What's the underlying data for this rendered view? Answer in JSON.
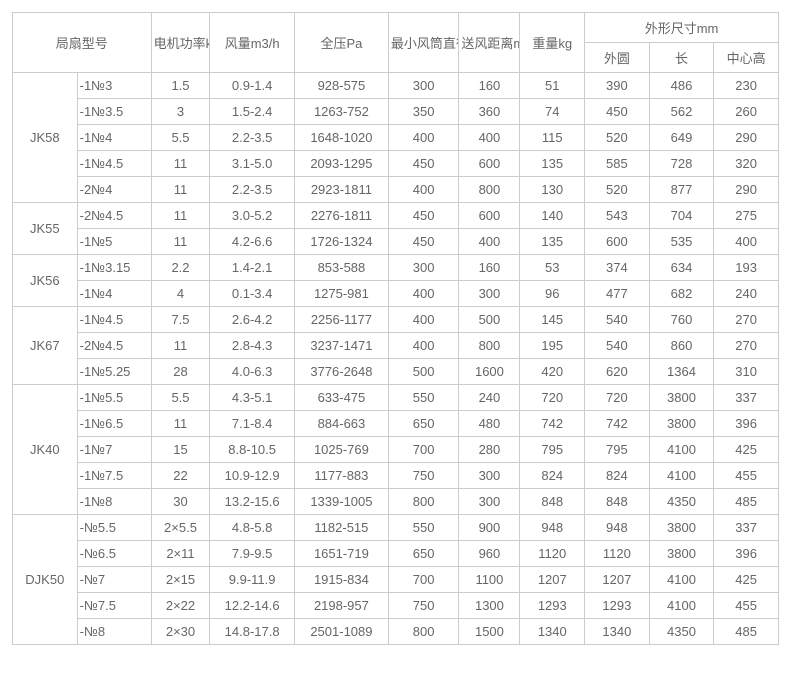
{
  "headers": {
    "model": "局扇型号",
    "power": "电机功率kW",
    "airflow": "风量m3/h",
    "pressure": "全压Pa",
    "diameter": "最小风筒直径mm",
    "distance": "送风距离m",
    "weight": "重量kg",
    "dims": "外形尺寸mm",
    "dim_outer": "外圆",
    "dim_length": "长",
    "dim_center": "中心高"
  },
  "groups": [
    {
      "name": "JK58",
      "rows": [
        {
          "sub": "-1№3",
          "power": "1.5",
          "airflow": "0.9-1.4",
          "pressure": "928-575",
          "diameter": "300",
          "distance": "160",
          "weight": "51",
          "d1": "390",
          "d2": "486",
          "d3": "230"
        },
        {
          "sub": "-1№3.5",
          "power": "3",
          "airflow": "1.5-2.4",
          "pressure": "1263-752",
          "diameter": "350",
          "distance": "360",
          "weight": "74",
          "d1": "450",
          "d2": "562",
          "d3": "260"
        },
        {
          "sub": "-1№4",
          "power": "5.5",
          "airflow": "2.2-3.5",
          "pressure": "1648-1020",
          "diameter": "400",
          "distance": "400",
          "weight": "115",
          "d1": "520",
          "d2": "649",
          "d3": "290"
        },
        {
          "sub": "-1№4.5",
          "power": "11",
          "airflow": "3.1-5.0",
          "pressure": "2093-1295",
          "diameter": "450",
          "distance": "600",
          "weight": "135",
          "d1": "585",
          "d2": "728",
          "d3": "320"
        },
        {
          "sub": "-2№4",
          "power": "11",
          "airflow": "2.2-3.5",
          "pressure": "2923-1811",
          "diameter": "400",
          "distance": "800",
          "weight": "130",
          "d1": "520",
          "d2": "877",
          "d3": "290"
        }
      ]
    },
    {
      "name": "JK55",
      "rows": [
        {
          "sub": "-2№4.5",
          "power": "11",
          "airflow": "3.0-5.2",
          "pressure": "2276-1811",
          "diameter": "450",
          "distance": "600",
          "weight": "140",
          "d1": "543",
          "d2": "704",
          "d3": "275"
        },
        {
          "sub": "-1№5",
          "power": "11",
          "airflow": "4.2-6.6",
          "pressure": "1726-1324",
          "diameter": "450",
          "distance": "400",
          "weight": "135",
          "d1": "600",
          "d2": "535",
          "d3": "400"
        }
      ]
    },
    {
      "name": "JK56",
      "rows": [
        {
          "sub": "-1№3.15",
          "power": "2.2",
          "airflow": "1.4-2.1",
          "pressure": "853-588",
          "diameter": "300",
          "distance": "160",
          "weight": "53",
          "d1": "374",
          "d2": "634",
          "d3": "193"
        },
        {
          "sub": "-1№4",
          "power": "4",
          "airflow": "0.1-3.4",
          "pressure": "1275-981",
          "diameter": "400",
          "distance": "300",
          "weight": "96",
          "d1": "477",
          "d2": "682",
          "d3": "240"
        }
      ]
    },
    {
      "name": "JK67",
      "rows": [
        {
          "sub": "-1№4.5",
          "power": "7.5",
          "airflow": "2.6-4.2",
          "pressure": "2256-1177",
          "diameter": "400",
          "distance": "500",
          "weight": "145",
          "d1": "540",
          "d2": "760",
          "d3": "270"
        },
        {
          "sub": "-2№4.5",
          "power": "11",
          "airflow": "2.8-4.3",
          "pressure": "3237-1471",
          "diameter": "400",
          "distance": "800",
          "weight": "195",
          "d1": "540",
          "d2": "860",
          "d3": "270"
        },
        {
          "sub": "-1№5.25",
          "power": "28",
          "airflow": "4.0-6.3",
          "pressure": "3776-2648",
          "diameter": "500",
          "distance": "1600",
          "weight": "420",
          "d1": "620",
          "d2": "1364",
          "d3": "310"
        }
      ]
    },
    {
      "name": "JK40",
      "rows": [
        {
          "sub": "-1№5.5",
          "power": "5.5",
          "airflow": "4.3-5.1",
          "pressure": "633-475",
          "diameter": "550",
          "distance": "240",
          "weight": "720",
          "d1": "720",
          "d2": "3800",
          "d3": "337"
        },
        {
          "sub": "-1№6.5",
          "power": "11",
          "airflow": "7.1-8.4",
          "pressure": "884-663",
          "diameter": "650",
          "distance": "480",
          "weight": "742",
          "d1": "742",
          "d2": "3800",
          "d3": "396"
        },
        {
          "sub": "-1№7",
          "power": "15",
          "airflow": "8.8-10.5",
          "pressure": "1025-769",
          "diameter": "700",
          "distance": "280",
          "weight": "795",
          "d1": "795",
          "d2": "4100",
          "d3": "425"
        },
        {
          "sub": "-1№7.5",
          "power": "22",
          "airflow": "10.9-12.9",
          "pressure": "1177-883",
          "diameter": "750",
          "distance": "300",
          "weight": "824",
          "d1": "824",
          "d2": "4100",
          "d3": "455"
        },
        {
          "sub": "-1№8",
          "power": "30",
          "airflow": "13.2-15.6",
          "pressure": "1339-1005",
          "diameter": "800",
          "distance": "300",
          "weight": "848",
          "d1": "848",
          "d2": "4350",
          "d3": "485"
        }
      ]
    },
    {
      "name": "DJK50",
      "rows": [
        {
          "sub": "-№5.5",
          "power": "2×5.5",
          "airflow": "4.8-5.8",
          "pressure": "1182-515",
          "diameter": "550",
          "distance": "900",
          "weight": "948",
          "d1": "948",
          "d2": "3800",
          "d3": "337"
        },
        {
          "sub": "-№6.5",
          "power": "2×11",
          "airflow": "7.9-9.5",
          "pressure": "1651-719",
          "diameter": "650",
          "distance": "960",
          "weight": "1120",
          "d1": "1120",
          "d2": "3800",
          "d3": "396"
        },
        {
          "sub": "-№7",
          "power": "2×15",
          "airflow": "9.9-11.9",
          "pressure": "1915-834",
          "diameter": "700",
          "distance": "1100",
          "weight": "1207",
          "d1": "1207",
          "d2": "4100",
          "d3": "425"
        },
        {
          "sub": "-№7.5",
          "power": "2×22",
          "airflow": "12.2-14.6",
          "pressure": "2198-957",
          "diameter": "750",
          "distance": "1300",
          "weight": "1293",
          "d1": "1293",
          "d2": "4100",
          "d3": "455"
        },
        {
          "sub": "-№8",
          "power": "2×30",
          "airflow": "14.8-17.8",
          "pressure": "2501-1089",
          "diameter": "800",
          "distance": "1500",
          "weight": "1340",
          "d1": "1340",
          "d2": "4350",
          "d3": "485"
        }
      ]
    }
  ]
}
